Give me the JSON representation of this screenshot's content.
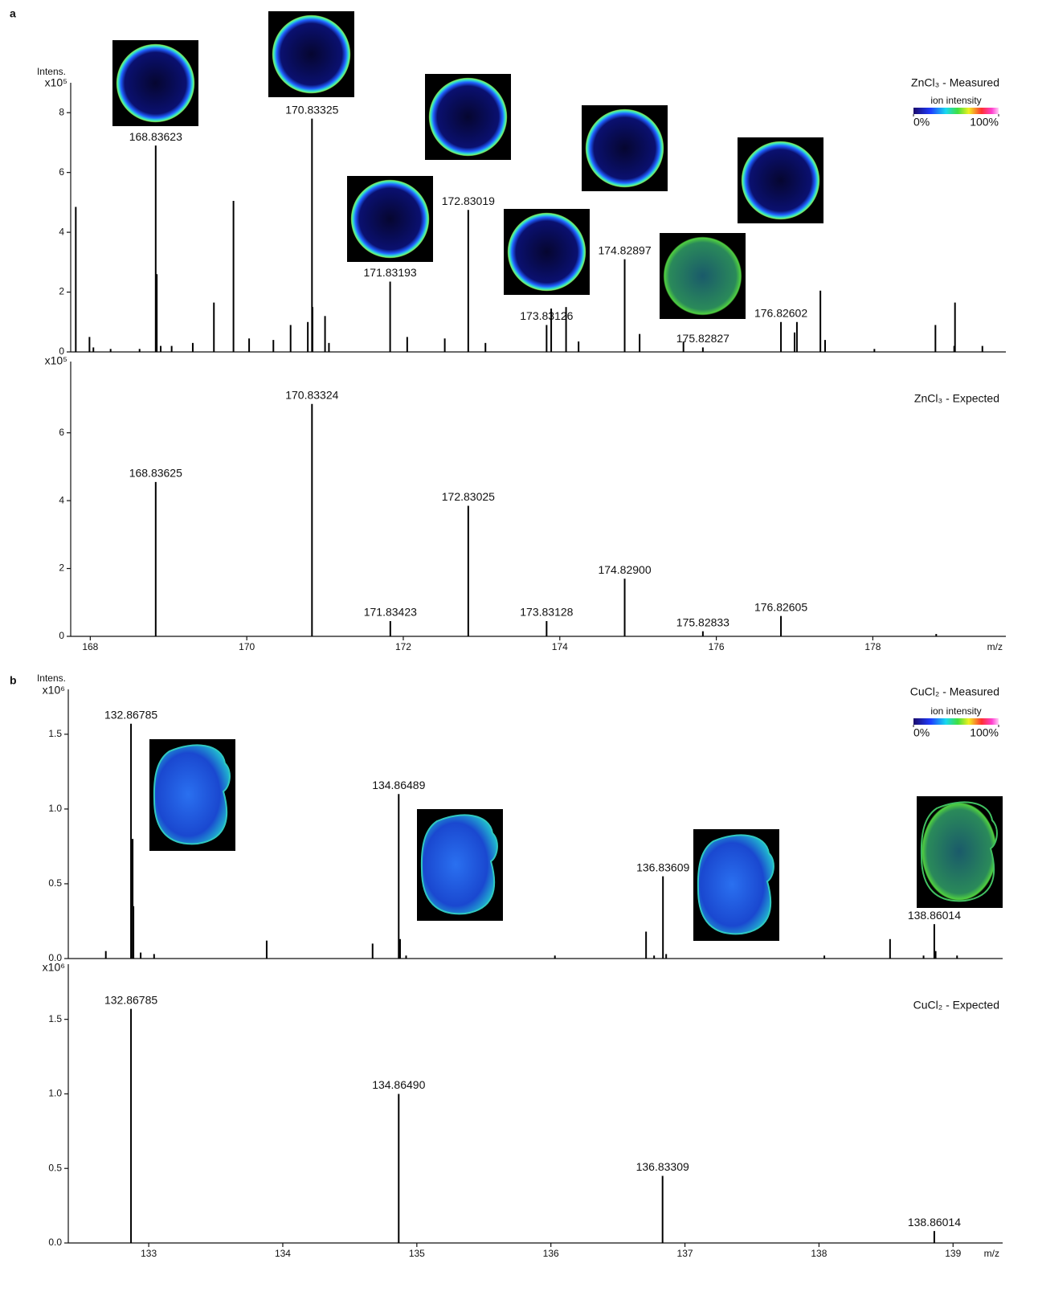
{
  "chart_data": [
    {
      "type": "stem",
      "panel_label": "a",
      "title": "ZnCl₃ - Measured",
      "ylabel": "Intens.",
      "y_unit": "x10⁵",
      "color": "#000000",
      "colorbar": {
        "label": "ion intensity",
        "ticks": [
          {
            "value": 0,
            "label": "0%"
          },
          {
            "value": 100,
            "label": "100%"
          }
        ]
      },
      "xlim": [
        167.75,
        179.7
      ],
      "ylim": [
        0,
        9
      ],
      "yticks": [
        0,
        2,
        4,
        6,
        8
      ],
      "x": [
        167.815,
        167.99,
        168.04,
        168.26,
        168.63,
        168.83623,
        168.85,
        168.9,
        169.04,
        169.31,
        169.58,
        169.83,
        170.03,
        170.34,
        170.56,
        170.78,
        170.83325,
        170.84,
        171.0,
        171.05,
        171.83193,
        172.05,
        172.53,
        172.83019,
        173.05,
        173.83126,
        173.89,
        174.08,
        174.24,
        174.82897,
        175.02,
        175.58,
        175.82827,
        176.82602,
        177.0,
        177.03,
        177.33,
        177.39,
        178.02,
        178.8,
        179.04,
        179.05,
        179.4
      ],
      "values": [
        4.85,
        0.5,
        0.15,
        0.1,
        0.1,
        6.9,
        2.6,
        0.2,
        0.2,
        0.3,
        1.65,
        5.05,
        0.45,
        0.4,
        0.9,
        1.0,
        7.8,
        1.5,
        1.2,
        0.3,
        2.35,
        0.5,
        0.45,
        4.75,
        0.3,
        0.9,
        1.45,
        1.5,
        0.35,
        3.1,
        0.6,
        0.35,
        0.15,
        1.0,
        0.65,
        1.0,
        2.05,
        0.4,
        0.1,
        0.9,
        0.2,
        1.65,
        0.2
      ],
      "x_labels": [
        null,
        null,
        null,
        null,
        null,
        "168.83623",
        null,
        null,
        null,
        null,
        null,
        null,
        null,
        null,
        null,
        null,
        "170.83325",
        null,
        null,
        null,
        "171.83193",
        null,
        null,
        "172.83019",
        null,
        "173.83126",
        null,
        null,
        null,
        "174.82897",
        null,
        null,
        "175.82827",
        "176.82602",
        null,
        null,
        null,
        null,
        null,
        null,
        null,
        null,
        null
      ]
    },
    {
      "type": "stem",
      "title": "ZnCl₃ - Expected",
      "y_unit": "x10⁵",
      "xlabel": "m/z",
      "color": "#000000",
      "xlim": [
        167.75,
        179.7
      ],
      "ylim": [
        0,
        8.1
      ],
      "yticks": [
        0,
        2,
        4,
        6
      ],
      "xticks": [
        168,
        170,
        172,
        174,
        176,
        178
      ],
      "x": [
        168.83625,
        170.83324,
        171.83423,
        172.83025,
        173.83128,
        174.829,
        175.82833,
        176.82605,
        178.81
      ],
      "values": [
        4.55,
        6.85,
        0.45,
        3.85,
        0.45,
        1.7,
        0.15,
        0.6,
        0.07
      ],
      "x_labels": [
        "168.83625",
        "170.83324",
        "171.83423",
        "172.83025",
        "173.83128",
        "174.82900",
        "175.82833",
        "176.82605",
        null
      ]
    },
    {
      "type": "stem",
      "panel_label": "b",
      "title": "CuCl₂ - Measured",
      "ylabel": "Intens.",
      "y_unit": "x10⁶",
      "color": "#000000",
      "colorbar": {
        "label": "ion intensity",
        "ticks": [
          {
            "value": 0,
            "label": "0%"
          },
          {
            "value": 100,
            "label": "100%"
          }
        ]
      },
      "xlim": [
        132.4,
        139.37
      ],
      "ylim": [
        0,
        1.8
      ],
      "yticks": [
        {
          "value": 0,
          "label": "0.0"
        },
        0.5,
        {
          "value": 1,
          "label": "1.0"
        },
        1.5
      ],
      "x": [
        132.68,
        132.86785,
        132.88,
        132.886,
        132.94,
        133.04,
        133.88,
        134.67,
        134.86489,
        134.875,
        134.92,
        136.03,
        136.71,
        136.77,
        136.83609,
        136.86,
        138.04,
        138.53,
        138.78,
        138.86014,
        138.87,
        139.03
      ],
      "values": [
        0.05,
        1.57,
        0.8,
        0.35,
        0.04,
        0.03,
        0.12,
        0.1,
        1.1,
        0.13,
        0.02,
        0.02,
        0.18,
        0.02,
        0.55,
        0.03,
        0.02,
        0.13,
        0.02,
        0.23,
        0.05,
        0.02
      ],
      "x_labels": [
        null,
        "132.86785",
        null,
        null,
        null,
        null,
        null,
        null,
        "134.86489",
        null,
        null,
        null,
        null,
        null,
        "136.83609",
        null,
        null,
        null,
        null,
        "138.86014",
        null,
        null
      ]
    },
    {
      "type": "stem",
      "title": "CuCl₂ - Expected",
      "y_unit": "x10⁶",
      "xlabel": "m/z",
      "color": "#000000",
      "xlim": [
        132.4,
        139.37
      ],
      "ylim": [
        0,
        1.87
      ],
      "yticks": [
        {
          "value": 0,
          "label": "0.0"
        },
        0.5,
        {
          "value": 1,
          "label": "1.0"
        },
        1.5
      ],
      "xticks": [
        133,
        134,
        135,
        136,
        137,
        138,
        139
      ],
      "x": [
        132.86785,
        134.8649,
        136.83309,
        138.86014
      ],
      "values": [
        1.57,
        1.0,
        0.45,
        0.08
      ],
      "x_labels": [
        "132.86785",
        "134.86490",
        "136.83309",
        "138.86014"
      ]
    }
  ]
}
